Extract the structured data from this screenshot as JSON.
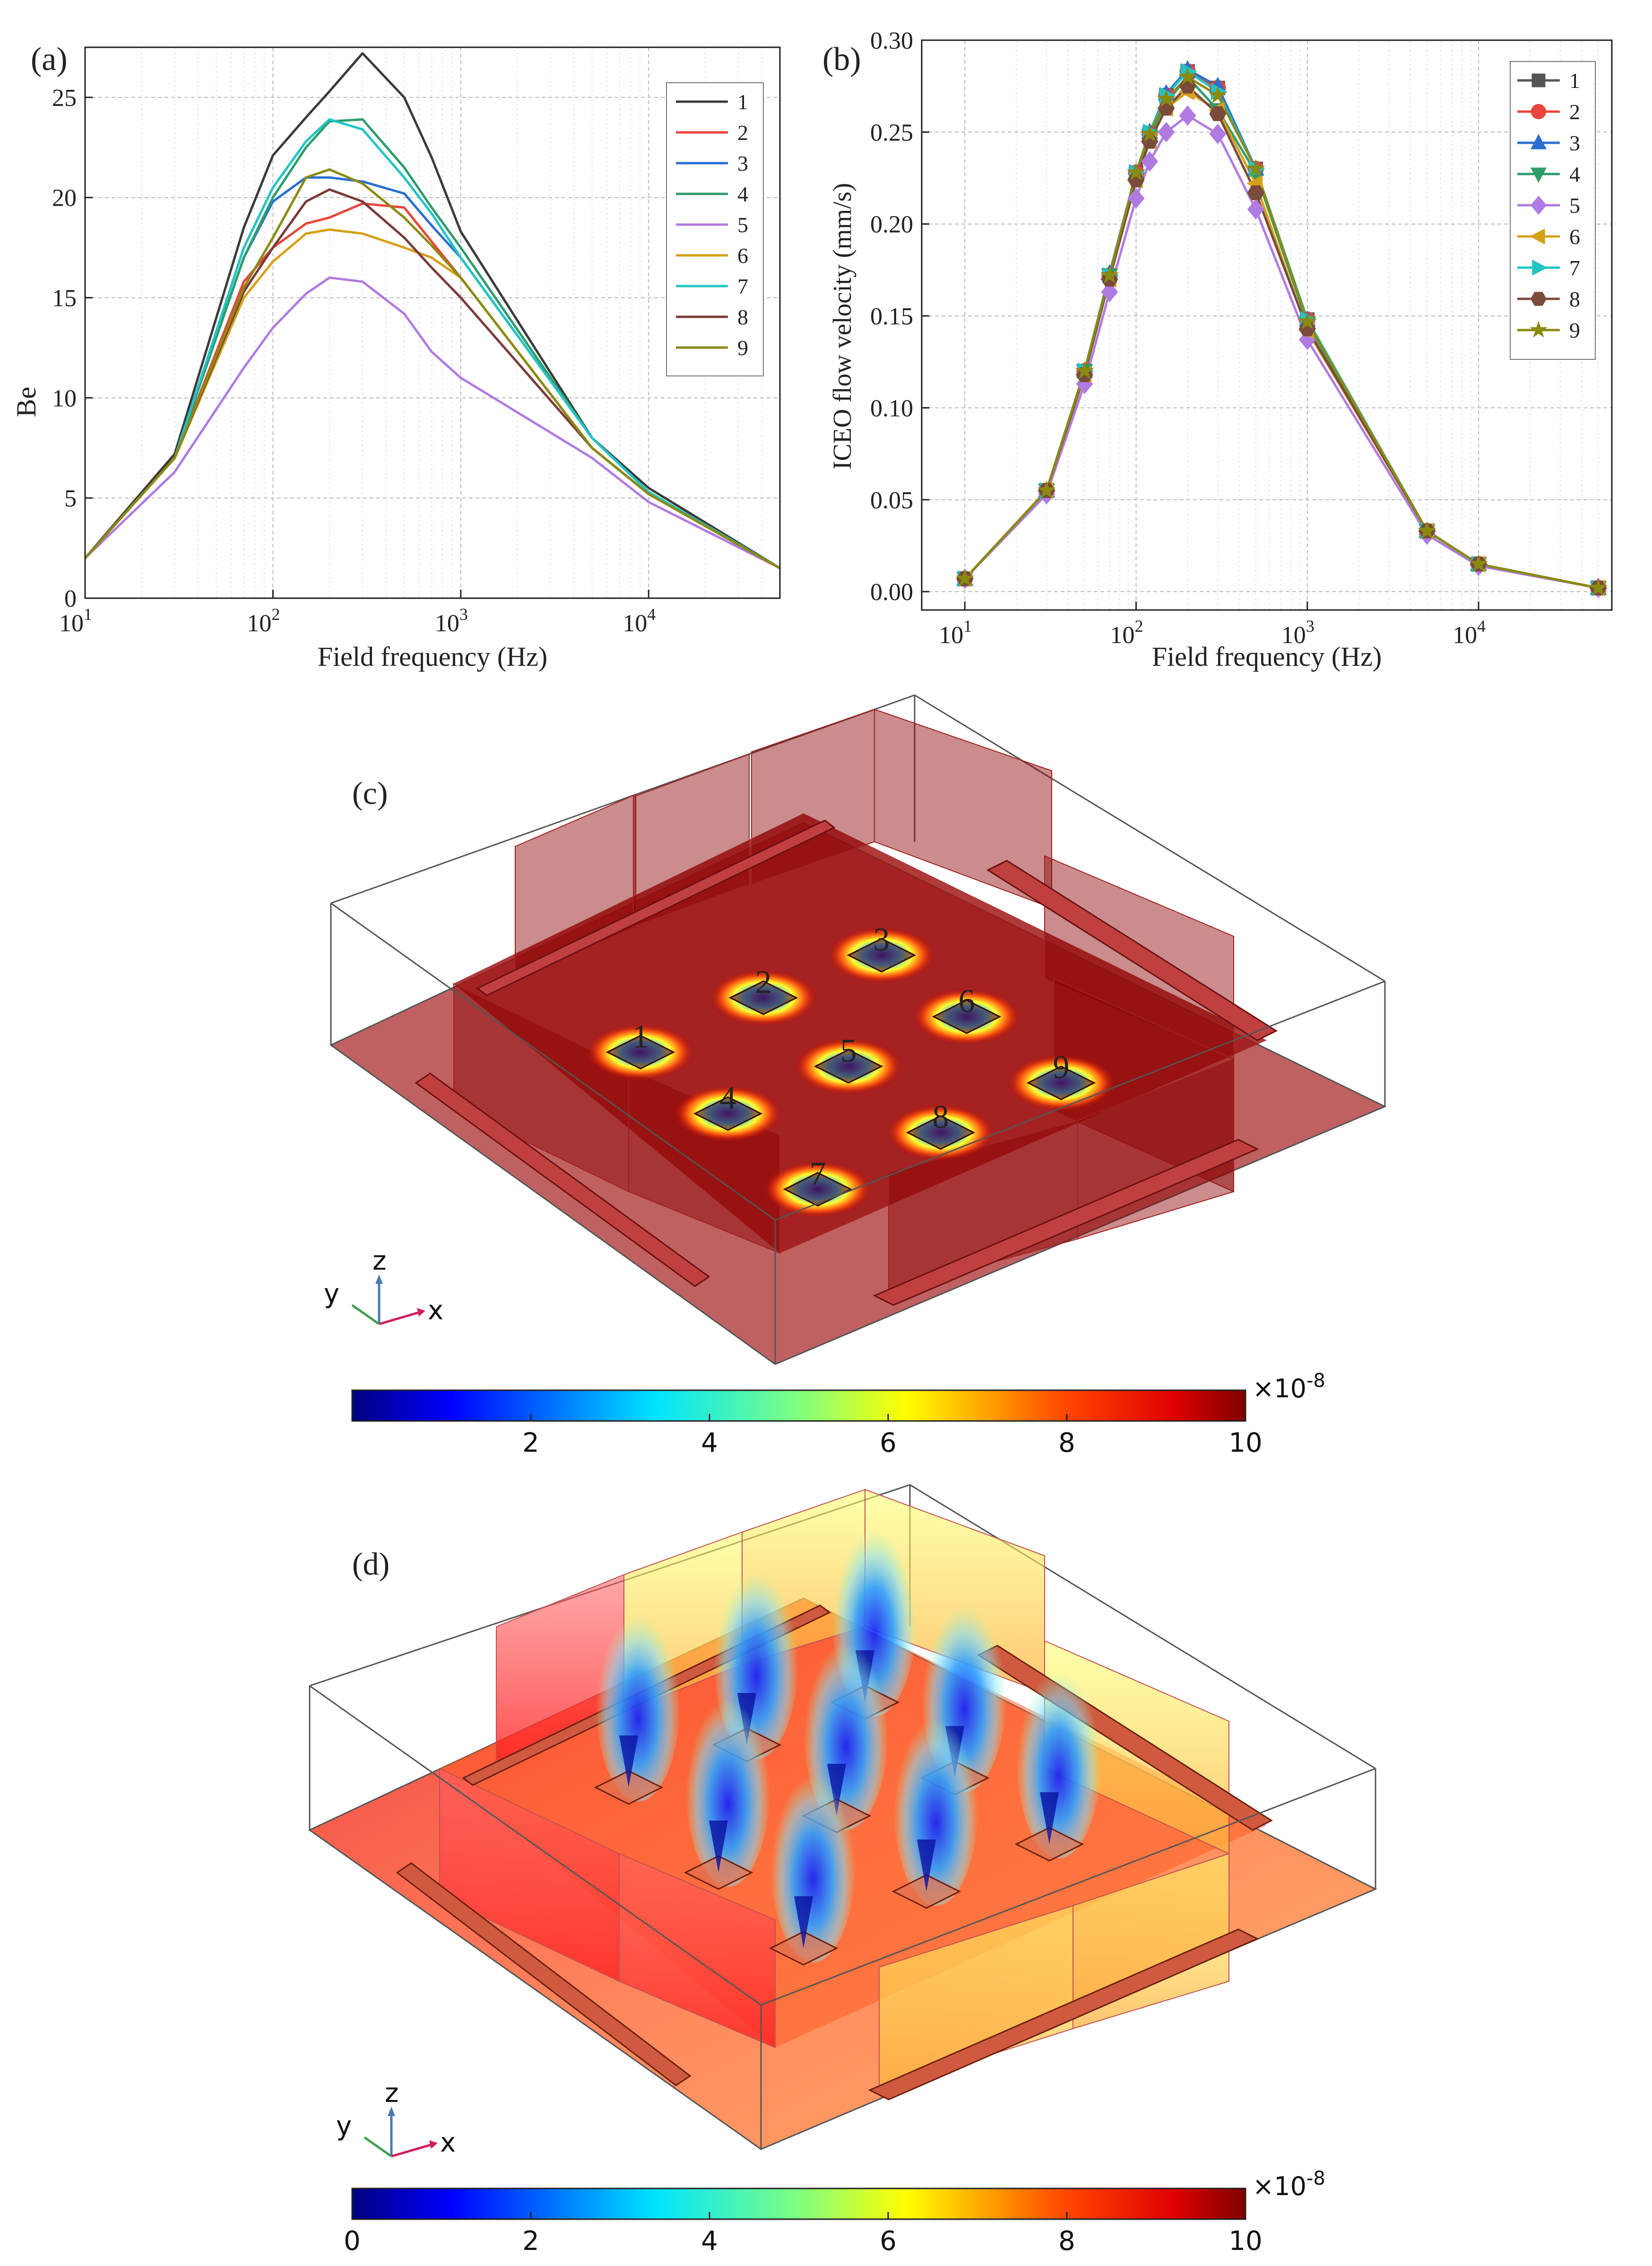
{
  "chart_data": [
    {
      "id": "a",
      "type": "line",
      "panel_label": "(a)",
      "xlabel": "Field frequency (Hz)",
      "ylabel": "Be",
      "xscale": "log",
      "xlim": [
        10,
        50000
      ],
      "ylim": [
        0,
        27.5
      ],
      "x_ticks": [
        {
          "v": 10,
          "label": "10",
          "exp": "1"
        },
        {
          "v": 100,
          "label": "10",
          "exp": "2"
        },
        {
          "v": 1000,
          "label": "10",
          "exp": "3"
        },
        {
          "v": 10000,
          "label": "10",
          "exp": "4"
        }
      ],
      "y_ticks": [
        0,
        5,
        10,
        15,
        20,
        25
      ],
      "grid": true,
      "legend": "top-right",
      "x": [
        10,
        30,
        70,
        100,
        150,
        200,
        300,
        500,
        700,
        1000,
        5000,
        10000,
        50000
      ],
      "series": [
        {
          "name": "1",
          "color": "#3a3a3a",
          "values": [
            2.0,
            7.2,
            18.5,
            22.1,
            24.0,
            25.3,
            27.2,
            25.0,
            22.0,
            18.3,
            8.0,
            5.5,
            1.5
          ]
        },
        {
          "name": "2",
          "color": "#e8453c",
          "values": [
            2.0,
            7.0,
            15.8,
            17.5,
            18.7,
            19.0,
            19.7,
            19.5,
            17.8,
            16.0,
            7.5,
            5.2,
            1.5
          ]
        },
        {
          "name": "3",
          "color": "#2a6fd0",
          "values": [
            2.0,
            7.0,
            17.0,
            19.8,
            21.0,
            21.0,
            20.8,
            20.2,
            18.6,
            17.0,
            8.0,
            5.3,
            1.5
          ]
        },
        {
          "name": "4",
          "color": "#2e9c6a",
          "values": [
            2.0,
            7.0,
            17.0,
            20.0,
            22.5,
            23.8,
            23.9,
            21.5,
            19.5,
            17.5,
            8.0,
            5.3,
            1.5
          ]
        },
        {
          "name": "5",
          "color": "#b07be0",
          "values": [
            2.0,
            6.3,
            11.5,
            13.5,
            15.2,
            16.0,
            15.8,
            14.2,
            12.3,
            11.0,
            7.0,
            4.8,
            1.5
          ]
        },
        {
          "name": "6",
          "color": "#d4a017",
          "values": [
            2.0,
            7.0,
            15.0,
            16.8,
            18.2,
            18.4,
            18.2,
            17.5,
            17.0,
            16.0,
            7.5,
            5.2,
            1.5
          ]
        },
        {
          "name": "7",
          "color": "#20c4c4",
          "values": [
            2.0,
            7.0,
            17.5,
            20.5,
            22.8,
            23.9,
            23.4,
            21.0,
            19.2,
            17.0,
            8.0,
            5.3,
            1.5
          ]
        },
        {
          "name": "8",
          "color": "#7a3a3a",
          "values": [
            2.0,
            7.0,
            15.3,
            17.5,
            19.8,
            20.4,
            19.8,
            18.0,
            16.5,
            15.0,
            7.5,
            5.2,
            1.5
          ]
        },
        {
          "name": "9",
          "color": "#8a8a10",
          "values": [
            2.0,
            7.0,
            15.5,
            18.0,
            21.0,
            21.4,
            20.7,
            19.0,
            17.6,
            16.0,
            7.5,
            5.2,
            1.5
          ]
        }
      ]
    },
    {
      "id": "b",
      "type": "line",
      "panel_label": "(b)",
      "xlabel": "Field frequency (Hz)",
      "ylabel": "ICEO flow velocity (mm/s)",
      "xscale": "log",
      "xlim": [
        5.6,
        60000
      ],
      "ylim": [
        -0.01,
        0.3
      ],
      "x_ticks": [
        {
          "v": 10,
          "label": "10",
          "exp": "1"
        },
        {
          "v": 100,
          "label": "10",
          "exp": "2"
        },
        {
          "v": 1000,
          "label": "10",
          "exp": "3"
        },
        {
          "v": 10000,
          "label": "10",
          "exp": "4"
        }
      ],
      "y_ticks": [
        "0.00",
        "0.05",
        "0.10",
        "0.15",
        "0.20",
        "0.25",
        "0.30"
      ],
      "grid": true,
      "legend": "top-right",
      "x": [
        10,
        30,
        50,
        70,
        100,
        120,
        150,
        200,
        300,
        500,
        1000,
        5000,
        10000,
        50000
      ],
      "series": [
        {
          "name": "1",
          "color": "#555555",
          "marker": "square",
          "values": [
            0.007,
            0.055,
            0.12,
            0.172,
            0.228,
            0.249,
            0.27,
            0.283,
            0.274,
            0.23,
            0.148,
            0.033,
            0.015,
            0.002
          ]
        },
        {
          "name": "2",
          "color": "#e8453c",
          "marker": "circle",
          "values": [
            0.007,
            0.055,
            0.12,
            0.172,
            0.228,
            0.249,
            0.27,
            0.283,
            0.274,
            0.23,
            0.148,
            0.033,
            0.015,
            0.002
          ]
        },
        {
          "name": "3",
          "color": "#2a6fd0",
          "marker": "triangle-up",
          "values": [
            0.007,
            0.055,
            0.12,
            0.173,
            0.228,
            0.25,
            0.271,
            0.284,
            0.275,
            0.23,
            0.148,
            0.033,
            0.015,
            0.002
          ]
        },
        {
          "name": "4",
          "color": "#2e9c6a",
          "marker": "triangle-down",
          "values": [
            0.007,
            0.055,
            0.12,
            0.172,
            0.226,
            0.248,
            0.266,
            0.28,
            0.262,
            0.228,
            0.146,
            0.033,
            0.015,
            0.002
          ]
        },
        {
          "name": "5",
          "color": "#b07be0",
          "marker": "diamond",
          "values": [
            0.007,
            0.053,
            0.113,
            0.163,
            0.214,
            0.234,
            0.25,
            0.259,
            0.249,
            0.208,
            0.137,
            0.031,
            0.014,
            0.002
          ]
        },
        {
          "name": "6",
          "color": "#d4a017",
          "marker": "triangle-left",
          "values": [
            0.007,
            0.055,
            0.118,
            0.17,
            0.224,
            0.245,
            0.263,
            0.272,
            0.262,
            0.222,
            0.142,
            0.033,
            0.015,
            0.002
          ]
        },
        {
          "name": "7",
          "color": "#20c4c4",
          "marker": "triangle-right",
          "values": [
            0.007,
            0.055,
            0.12,
            0.172,
            0.228,
            0.25,
            0.27,
            0.283,
            0.272,
            0.23,
            0.148,
            0.033,
            0.015,
            0.002
          ]
        },
        {
          "name": "8",
          "color": "#7a4a3a",
          "marker": "hexagon",
          "values": [
            0.007,
            0.055,
            0.118,
            0.17,
            0.224,
            0.245,
            0.263,
            0.275,
            0.26,
            0.217,
            0.143,
            0.033,
            0.015,
            0.002
          ]
        },
        {
          "name": "9",
          "color": "#8a8a10",
          "marker": "star",
          "values": [
            0.007,
            0.055,
            0.12,
            0.172,
            0.228,
            0.249,
            0.268,
            0.28,
            0.27,
            0.23,
            0.147,
            0.033,
            0.015,
            0.002
          ]
        }
      ]
    },
    {
      "id": "c",
      "type": "heatmap",
      "panel_label": "(c)",
      "electrode_labels": [
        "1",
        "2",
        "3",
        "4",
        "5",
        "6",
        "7",
        "8",
        "9"
      ],
      "colorbar": {
        "ticks": [
          "2",
          "4",
          "6",
          "8",
          "10"
        ],
        "min": 0,
        "max": 10,
        "scale_label": "×10",
        "scale_exp": "-8"
      },
      "axes_triad": {
        "x": "x",
        "y": "y",
        "z": "z"
      }
    },
    {
      "id": "d",
      "type": "heatmap",
      "panel_label": "(d)",
      "colorbar": {
        "ticks": [
          "0",
          "2",
          "4",
          "6",
          "8",
          "10"
        ],
        "min": 0,
        "max": 10,
        "scale_label": "×10",
        "scale_exp": "-8"
      },
      "axes_triad": {
        "x": "x",
        "y": "y",
        "z": "z"
      }
    }
  ]
}
